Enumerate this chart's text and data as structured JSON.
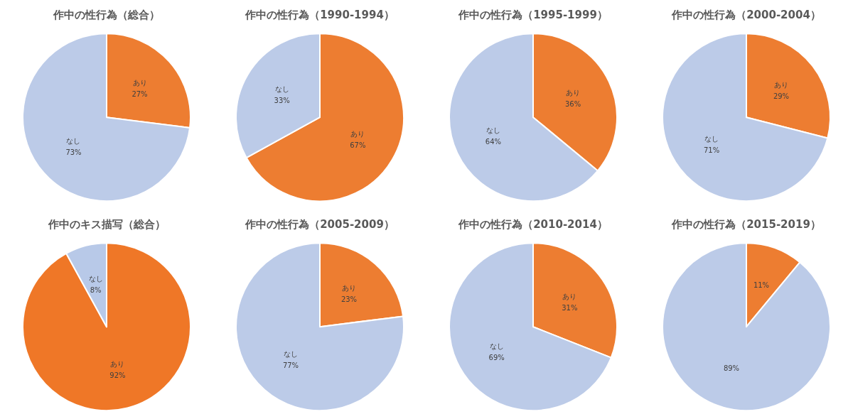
{
  "chart_data": [
    {
      "type": "pie",
      "title": "作中の性行為（総合）",
      "categories": [
        "あり",
        "なし"
      ],
      "values": [
        27,
        73
      ],
      "value_labels": [
        "27%",
        "73%"
      ],
      "colors": [
        "#ed7d31",
        "#bccbe8"
      ]
    },
    {
      "type": "pie",
      "title": "作中の性行為（1990-1994）",
      "categories": [
        "あり",
        "なし"
      ],
      "values": [
        67,
        33
      ],
      "value_labels": [
        "67%",
        "33%"
      ],
      "colors": [
        "#ed7d31",
        "#bccbe8"
      ]
    },
    {
      "type": "pie",
      "title": "作中の性行為（1995-1999）",
      "categories": [
        "あり",
        "なし"
      ],
      "values": [
        36,
        64
      ],
      "value_labels": [
        "36%",
        "64%"
      ],
      "colors": [
        "#ed7d31",
        "#bccbe8"
      ]
    },
    {
      "type": "pie",
      "title": "作中の性行為（2000-2004）",
      "categories": [
        "あり",
        "なし"
      ],
      "values": [
        29,
        71
      ],
      "value_labels": [
        "29%",
        "71%"
      ],
      "colors": [
        "#ed7d31",
        "#bccbe8"
      ]
    },
    {
      "type": "pie",
      "title": "作中のキス描写（総合）",
      "categories": [
        "あり",
        "なし"
      ],
      "values": [
        92,
        8
      ],
      "value_labels": [
        "92%",
        "8%"
      ],
      "colors": [
        "#ef7727",
        "#b8c9e8"
      ]
    },
    {
      "type": "pie",
      "title": "作中の性行為（2005-2009）",
      "categories": [
        "あり",
        "なし"
      ],
      "values": [
        23,
        77
      ],
      "value_labels": [
        "23%",
        "77%"
      ],
      "colors": [
        "#ed7d31",
        "#bccbe8"
      ]
    },
    {
      "type": "pie",
      "title": "作中の性行為（2010-2014）",
      "categories": [
        "あり",
        "なし"
      ],
      "values": [
        31,
        69
      ],
      "value_labels": [
        "31%",
        "69%"
      ],
      "colors": [
        "#ed7d31",
        "#bccbe8"
      ]
    },
    {
      "type": "pie",
      "title": "作中の性行為（2015-2019）",
      "categories": [
        null,
        null
      ],
      "values": [
        11,
        89
      ],
      "value_labels": [
        "11%",
        "89%"
      ],
      "colors": [
        "#ed7d31",
        "#bccbe8"
      ]
    }
  ]
}
